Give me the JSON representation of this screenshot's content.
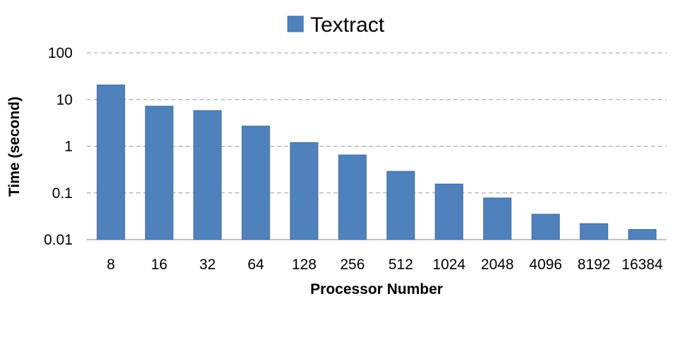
{
  "chart_data": {
    "type": "bar",
    "categories": [
      "8",
      "16",
      "32",
      "64",
      "128",
      "256",
      "512",
      "1024",
      "2048",
      "4096",
      "8192",
      "16384"
    ],
    "series": [
      {
        "name": "Textract",
        "color": "#4f81bd",
        "values": [
          20.5,
          7.2,
          5.8,
          2.7,
          1.2,
          0.65,
          0.29,
          0.155,
          0.078,
          0.035,
          0.022,
          0.0165
        ]
      }
    ],
    "xlabel": "Processor Number",
    "ylabel": "Time (second)",
    "yscale": "log",
    "ylim": [
      0.01,
      100
    ],
    "yticks": [
      0.01,
      0.1,
      1,
      10,
      100
    ],
    "ytick_labels": [
      "0.01",
      "0.1",
      "1",
      "10",
      "100"
    ],
    "grid": "horizontal dashed",
    "legend": "top-center"
  }
}
